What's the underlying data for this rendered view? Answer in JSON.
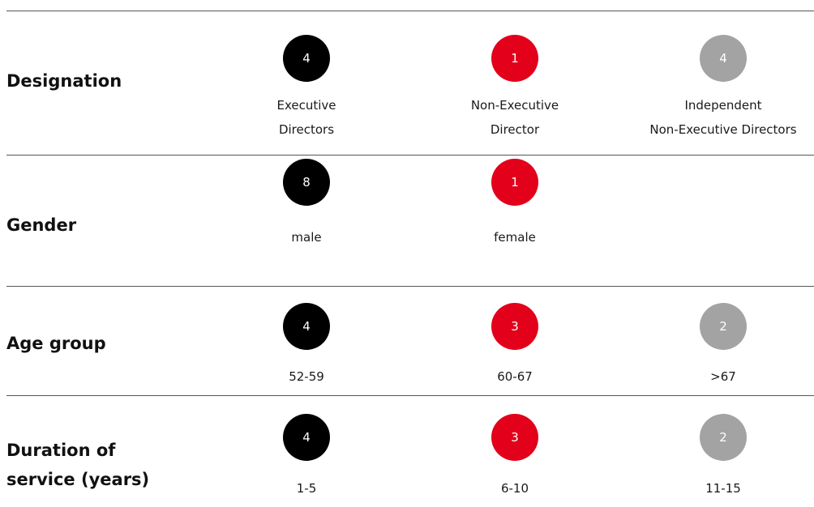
{
  "rows": [
    {
      "label": [
        "Designation"
      ],
      "items": [
        {
          "count": "4",
          "color": "#000000",
          "caption": [
            "Executive",
            "Directors"
          ]
        },
        {
          "count": "1",
          "color": "#e2001a",
          "caption": [
            "Non-Executive",
            "Director"
          ]
        },
        {
          "count": "4",
          "color": "#a3a3a3",
          "caption": [
            "Independent",
            "Non-Executive Directors"
          ]
        }
      ]
    },
    {
      "label": [
        "Gender"
      ],
      "items": [
        {
          "count": "8",
          "color": "#000000",
          "caption": [
            "male"
          ]
        },
        {
          "count": "1",
          "color": "#e2001a",
          "caption": [
            "female"
          ]
        }
      ]
    },
    {
      "label": [
        "Age group"
      ],
      "items": [
        {
          "count": "4",
          "color": "#000000",
          "caption": [
            "52-59"
          ]
        },
        {
          "count": "3",
          "color": "#e2001a",
          "caption": [
            "60-67"
          ]
        },
        {
          "count": "2",
          "color": "#a3a3a3",
          "caption": [
            ">67"
          ]
        }
      ]
    },
    {
      "label": [
        "Duration of",
        "service (years)"
      ],
      "items": [
        {
          "count": "4",
          "color": "#000000",
          "caption": [
            "1-5"
          ]
        },
        {
          "count": "3",
          "color": "#e2001a",
          "caption": [
            "6-10"
          ]
        },
        {
          "count": "2",
          "color": "#a3a3a3",
          "caption": [
            "11-15"
          ]
        }
      ]
    }
  ]
}
